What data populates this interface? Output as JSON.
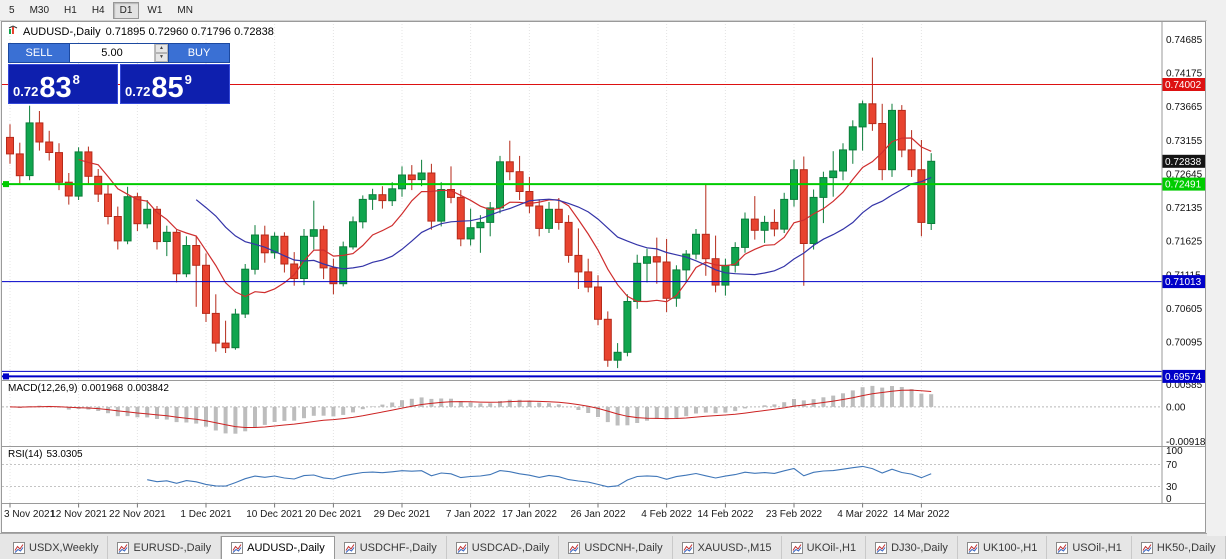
{
  "toolbar": {
    "timeframes": [
      "5",
      "M30",
      "H1",
      "H4",
      "D1",
      "W1",
      "MN"
    ],
    "active": "D1"
  },
  "chart": {
    "title_symbol": "AUDUSD-,Daily",
    "title_ohlc": "0.71895 0.72960 0.71796 0.72838"
  },
  "trade_panel": {
    "sell_label": "SELL",
    "buy_label": "BUY",
    "volume": "5.00",
    "sell_prefix": "0.72",
    "sell_big": "83",
    "sell_pip": "8",
    "buy_prefix": "0.72",
    "buy_big": "85",
    "buy_pip": "9"
  },
  "tabs": [
    {
      "label": "USDX,Weekly"
    },
    {
      "label": "EURUSD-,Daily"
    },
    {
      "label": "AUDUSD-,Daily",
      "active": true
    },
    {
      "label": "USDCHF-,Daily"
    },
    {
      "label": "USDCAD-,Daily"
    },
    {
      "label": "USDCNH-,Daily"
    },
    {
      "label": "XAUUSD-,M15"
    },
    {
      "label": "UKOil-,H1"
    },
    {
      "label": "DJ30-,Daily"
    },
    {
      "label": "UK100-,H1"
    },
    {
      "label": "USOil-,H1"
    },
    {
      "label": "HK50-,Daily"
    }
  ],
  "chart_data": {
    "type": "candlestick",
    "symbol": "AUDUSD",
    "timeframe": "Daily",
    "price_min": 0.6952,
    "price_max": 0.7492,
    "y_ticks": [
      "0.74685",
      "0.74175",
      "0.73665",
      "0.73155",
      "0.72645",
      "0.72135",
      "0.71625",
      "0.71115",
      "0.70605",
      "0.70095",
      "0.69585"
    ],
    "x_labels": [
      {
        "i": 0,
        "label": "3 Nov 2021"
      },
      {
        "i": 7,
        "label": "12 Nov 2021"
      },
      {
        "i": 13,
        "label": "22 Nov 2021"
      },
      {
        "i": 20,
        "label": "1 Dec 2021"
      },
      {
        "i": 27,
        "label": "10 Dec 2021"
      },
      {
        "i": 33,
        "label": "20 Dec 2021"
      },
      {
        "i": 40,
        "label": "29 Dec 2021"
      },
      {
        "i": 47,
        "label": "7 Jan 2022"
      },
      {
        "i": 53,
        "label": "17 Jan 2022"
      },
      {
        "i": 60,
        "label": "26 Jan 2022"
      },
      {
        "i": 67,
        "label": "4 Feb 2022"
      },
      {
        "i": 73,
        "label": "14 Feb 2022"
      },
      {
        "i": 80,
        "label": "23 Feb 2022"
      },
      {
        "i": 87,
        "label": "4 Mar 2022"
      },
      {
        "i": 93,
        "label": "14 Mar 2022"
      }
    ],
    "levels": [
      {
        "price": 0.74002,
        "color": "#dd1111",
        "width": 1,
        "label": "0.74002"
      },
      {
        "price": 0.72491,
        "color": "#00cc00",
        "width": 2,
        "label": "0.72491",
        "anchor": true
      },
      {
        "price": 0.71013,
        "color": "#0000c8",
        "width": 1,
        "label": "0.71013"
      },
      {
        "price": 0.6965,
        "color": "#0000c8",
        "width": 1,
        "label": null
      },
      {
        "price": 0.69574,
        "color": "#0000c8",
        "width": 2,
        "label": "0.69574",
        "anchor": true
      }
    ],
    "current_price": {
      "value": 0.72838,
      "label": "0.72838"
    },
    "ohlc_current": {
      "open": 0.71895,
      "high": 0.7296,
      "low": 0.71796,
      "close": 0.72838
    },
    "colors": {
      "bull": "#10a54e",
      "bull_border": "#0b7d3a",
      "bear": "#e8432f",
      "bear_border": "#b52a1a"
    },
    "overlays": [
      {
        "name": "ma-fast",
        "period": 8,
        "color": "#cf2e2e"
      },
      {
        "name": "ma-slow",
        "period": 20,
        "color": "#3434a8"
      }
    ],
    "indicators": {
      "macd": {
        "label": "MACD(12,26,9)",
        "value_main": "0.001968",
        "value_signal": "0.003842",
        "params": [
          12,
          26,
          9
        ],
        "range": [
          -0.00918,
          0.00585
        ],
        "y_ticks": [
          "0.00585",
          "0.00",
          "-0.00918"
        ],
        "hist_color": "#bdbdbd",
        "signal_color": "#cc2222"
      },
      "rsi": {
        "label": "RSI(14)",
        "value": "53.0305",
        "period": 14,
        "levels": [
          70,
          30
        ],
        "y_ticks": [
          "100",
          "70",
          "30",
          "0"
        ],
        "color": "#3f76b8"
      }
    },
    "candles": [
      [
        0.732,
        0.734,
        0.728,
        0.7295
      ],
      [
        0.7295,
        0.7312,
        0.725,
        0.7262
      ],
      [
        0.7262,
        0.7368,
        0.7255,
        0.7342
      ],
      [
        0.7342,
        0.736,
        0.73,
        0.7313
      ],
      [
        0.7313,
        0.733,
        0.7285,
        0.7297
      ],
      [
        0.7297,
        0.7311,
        0.724,
        0.7252
      ],
      [
        0.7252,
        0.7266,
        0.7218,
        0.7231
      ],
      [
        0.7231,
        0.7305,
        0.7225,
        0.7298
      ],
      [
        0.7298,
        0.7306,
        0.7248,
        0.7261
      ],
      [
        0.7261,
        0.7272,
        0.7222,
        0.7234
      ],
      [
        0.7234,
        0.725,
        0.7188,
        0.72
      ],
      [
        0.72,
        0.7215,
        0.715,
        0.7163
      ],
      [
        0.7163,
        0.7245,
        0.7158,
        0.723
      ],
      [
        0.723,
        0.7236,
        0.7178,
        0.7189
      ],
      [
        0.7189,
        0.7225,
        0.7182,
        0.7211
      ],
      [
        0.7211,
        0.7216,
        0.715,
        0.7162
      ],
      [
        0.7162,
        0.7186,
        0.714,
        0.7176
      ],
      [
        0.7176,
        0.718,
        0.71,
        0.7113
      ],
      [
        0.7113,
        0.717,
        0.7108,
        0.7156
      ],
      [
        0.7156,
        0.7171,
        0.7063,
        0.7126
      ],
      [
        0.7126,
        0.7144,
        0.704,
        0.7053
      ],
      [
        0.7053,
        0.7082,
        0.6995,
        0.7008
      ],
      [
        0.7008,
        0.7042,
        0.6993,
        0.7001
      ],
      [
        0.7001,
        0.706,
        0.6998,
        0.7052
      ],
      [
        0.7052,
        0.7128,
        0.7046,
        0.712
      ],
      [
        0.712,
        0.7187,
        0.7112,
        0.7172
      ],
      [
        0.7172,
        0.7186,
        0.713,
        0.7145
      ],
      [
        0.7145,
        0.7176,
        0.7136,
        0.717
      ],
      [
        0.717,
        0.7176,
        0.7115,
        0.7128
      ],
      [
        0.7128,
        0.7146,
        0.7095,
        0.7106
      ],
      [
        0.7106,
        0.7181,
        0.7096,
        0.717
      ],
      [
        0.717,
        0.7224,
        0.715,
        0.718
      ],
      [
        0.718,
        0.7186,
        0.7105,
        0.7122
      ],
      [
        0.7122,
        0.7136,
        0.7082,
        0.7098
      ],
      [
        0.7098,
        0.7162,
        0.7094,
        0.7154
      ],
      [
        0.7154,
        0.72,
        0.715,
        0.7192
      ],
      [
        0.7192,
        0.7232,
        0.7182,
        0.7226
      ],
      [
        0.7226,
        0.7242,
        0.721,
        0.7233
      ],
      [
        0.7233,
        0.7246,
        0.7212,
        0.7224
      ],
      [
        0.7224,
        0.7252,
        0.7216,
        0.7242
      ],
      [
        0.7242,
        0.7276,
        0.723,
        0.7263
      ],
      [
        0.7263,
        0.7278,
        0.724,
        0.7256
      ],
      [
        0.7256,
        0.7286,
        0.7246,
        0.7266
      ],
      [
        0.7266,
        0.728,
        0.718,
        0.7193
      ],
      [
        0.7193,
        0.7252,
        0.7185,
        0.7241
      ],
      [
        0.7241,
        0.7276,
        0.722,
        0.7229
      ],
      [
        0.7229,
        0.724,
        0.7155,
        0.7166
      ],
      [
        0.7166,
        0.7212,
        0.7156,
        0.7183
      ],
      [
        0.7183,
        0.7202,
        0.7145,
        0.7191
      ],
      [
        0.7191,
        0.7222,
        0.717,
        0.7213
      ],
      [
        0.7213,
        0.7292,
        0.7205,
        0.7283
      ],
      [
        0.7283,
        0.7315,
        0.7255,
        0.7268
      ],
      [
        0.7268,
        0.7292,
        0.7225,
        0.7238
      ],
      [
        0.7238,
        0.726,
        0.7205,
        0.7216
      ],
      [
        0.7216,
        0.7226,
        0.717,
        0.7182
      ],
      [
        0.7182,
        0.7222,
        0.7175,
        0.7211
      ],
      [
        0.7211,
        0.7228,
        0.718,
        0.7191
      ],
      [
        0.7191,
        0.7202,
        0.713,
        0.7141
      ],
      [
        0.7141,
        0.7182,
        0.709,
        0.7116
      ],
      [
        0.7116,
        0.7136,
        0.7085,
        0.7093
      ],
      [
        0.7093,
        0.7111,
        0.7035,
        0.7044
      ],
      [
        0.7044,
        0.7056,
        0.6972,
        0.6982
      ],
      [
        0.6982,
        0.7008,
        0.697,
        0.6994
      ],
      [
        0.6994,
        0.7082,
        0.6988,
        0.7071
      ],
      [
        0.7071,
        0.7142,
        0.706,
        0.7129
      ],
      [
        0.7129,
        0.7151,
        0.71,
        0.7139
      ],
      [
        0.7139,
        0.7168,
        0.7098,
        0.7131
      ],
      [
        0.7131,
        0.7166,
        0.7055,
        0.7076
      ],
      [
        0.7076,
        0.7126,
        0.7063,
        0.7119
      ],
      [
        0.7119,
        0.7149,
        0.71,
        0.7143
      ],
      [
        0.7143,
        0.7181,
        0.7135,
        0.7173
      ],
      [
        0.7173,
        0.7248,
        0.711,
        0.7136
      ],
      [
        0.7136,
        0.7171,
        0.7085,
        0.7096
      ],
      [
        0.7096,
        0.7136,
        0.708,
        0.7126
      ],
      [
        0.7126,
        0.7161,
        0.7115,
        0.7153
      ],
      [
        0.7153,
        0.7206,
        0.7145,
        0.7196
      ],
      [
        0.7196,
        0.7231,
        0.7165,
        0.7179
      ],
      [
        0.7179,
        0.7201,
        0.716,
        0.7191
      ],
      [
        0.7191,
        0.7211,
        0.717,
        0.7181
      ],
      [
        0.7181,
        0.7236,
        0.7175,
        0.7226
      ],
      [
        0.7226,
        0.7286,
        0.7215,
        0.7271
      ],
      [
        0.7271,
        0.7291,
        0.7095,
        0.7159
      ],
      [
        0.7159,
        0.7241,
        0.715,
        0.7229
      ],
      [
        0.7229,
        0.7268,
        0.719,
        0.7259
      ],
      [
        0.7259,
        0.7299,
        0.723,
        0.7269
      ],
      [
        0.7269,
        0.7311,
        0.7255,
        0.7301
      ],
      [
        0.7301,
        0.7346,
        0.728,
        0.7336
      ],
      [
        0.7336,
        0.7376,
        0.73,
        0.7371
      ],
      [
        0.7371,
        0.7441,
        0.733,
        0.7341
      ],
      [
        0.7341,
        0.7371,
        0.7255,
        0.7271
      ],
      [
        0.7271,
        0.7371,
        0.726,
        0.7361
      ],
      [
        0.7361,
        0.7369,
        0.729,
        0.7301
      ],
      [
        0.7301,
        0.7331,
        0.726,
        0.7271
      ],
      [
        0.7271,
        0.7316,
        0.717,
        0.7191
      ],
      [
        0.71895,
        0.7296,
        0.71796,
        0.72838
      ]
    ]
  }
}
